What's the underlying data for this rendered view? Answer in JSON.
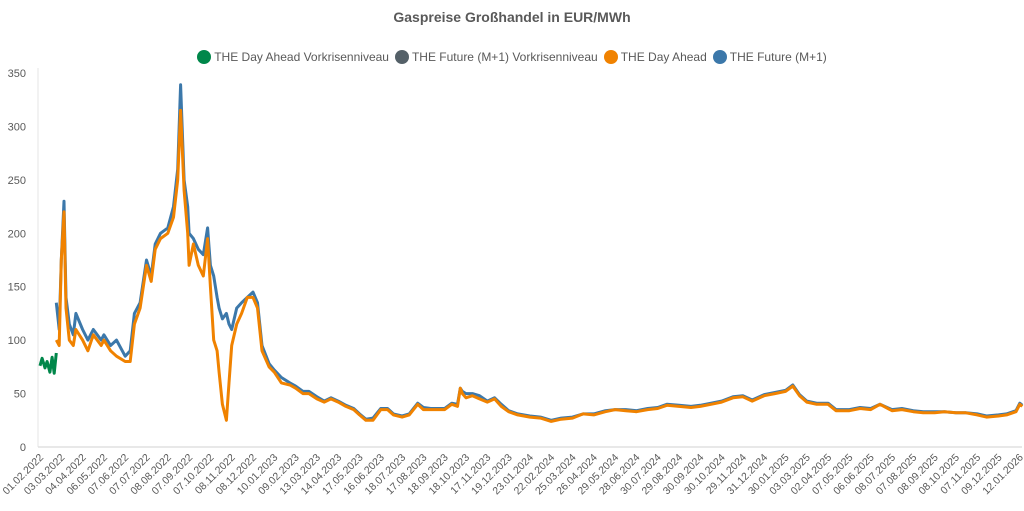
{
  "chart_data": {
    "type": "line",
    "title": "Gaspreise Großhandel in EUR/MWh",
    "xlabel": "",
    "ylabel": "",
    "ylim": [
      0,
      350
    ],
    "yticks": [
      0,
      50,
      100,
      150,
      200,
      250,
      300,
      350
    ],
    "grid": false,
    "legend_position": "top",
    "x_tick_labels": [
      "01.02.2022",
      "03.03.2022",
      "04.04.2022",
      "06.05.2022",
      "07.06.2022",
      "07.07.2022",
      "08.08.2022",
      "07.09.2022",
      "07.10.2022",
      "08.11.2022",
      "08.12.2022",
      "10.01.2023",
      "09.02.2023",
      "13.03.2023",
      "14.04.2023",
      "17.05.2023",
      "16.06.2023",
      "18.07.2023",
      "17.08.2023",
      "18.09.2023",
      "18.10.2023",
      "17.11.2023",
      "19.12.2023",
      "23.01.2024",
      "22.02.2024",
      "25.03.2024",
      "26.04.2024",
      "29.05.2024",
      "28.06.2024",
      "30.07.2024",
      "29.08.2024",
      "30.09.2024",
      "30.10.2024",
      "29.11.2024",
      "31.12.2024",
      "30.01.2025",
      "03.03.2025",
      "02.04.2025",
      "07.05.2025",
      "06.06.2025",
      "08.07.2025",
      "07.08.2025",
      "08.09.2025",
      "08.10.2025",
      "07.11.2025",
      "09.12.2025",
      "12.01.2026"
    ],
    "series": [
      {
        "name": "THE Day Ahead Vorkrisenniveau",
        "color": "#00874A",
        "points": [
          [
            "2022-02-01",
            76
          ],
          [
            "2022-02-04",
            83
          ],
          [
            "2022-02-08",
            74
          ],
          [
            "2022-02-11",
            80
          ],
          [
            "2022-02-15",
            70
          ],
          [
            "2022-02-18",
            84
          ],
          [
            "2022-02-21",
            69
          ],
          [
            "2022-02-24",
            88
          ]
        ]
      },
      {
        "name": "THE Future (M+1) Vorkrisenniveau",
        "color": "#546068",
        "points": []
      },
      {
        "name": "THE Day Ahead",
        "color": "#F08200",
        "key": "da"
      },
      {
        "name": "THE Future (M+1)",
        "color": "#3C78AA",
        "key": "fut"
      }
    ],
    "rows_date_dayahead_future": [
      [
        "2022-02-24",
        100,
        135
      ],
      [
        "2022-02-28",
        95,
        110
      ],
      [
        "2022-03-03",
        175,
        175
      ],
      [
        "2022-03-07",
        220,
        230
      ],
      [
        "2022-03-10",
        130,
        140
      ],
      [
        "2022-03-15",
        100,
        115
      ],
      [
        "2022-03-21",
        95,
        105
      ],
      [
        "2022-03-25",
        110,
        125
      ],
      [
        "2022-04-04",
        100,
        110
      ],
      [
        "2022-04-12",
        90,
        100
      ],
      [
        "2022-04-20",
        105,
        110
      ],
      [
        "2022-05-02",
        95,
        100
      ],
      [
        "2022-05-06",
        100,
        105
      ],
      [
        "2022-05-16",
        90,
        95
      ],
      [
        "2022-05-25",
        85,
        100
      ],
      [
        "2022-06-07",
        80,
        85
      ],
      [
        "2022-06-14",
        80,
        90
      ],
      [
        "2022-06-20",
        115,
        125
      ],
      [
        "2022-06-28",
        130,
        135
      ],
      [
        "2022-07-07",
        170,
        175
      ],
      [
        "2022-07-14",
        155,
        160
      ],
      [
        "2022-07-20",
        185,
        190
      ],
      [
        "2022-07-28",
        195,
        200
      ],
      [
        "2022-08-08",
        200,
        205
      ],
      [
        "2022-08-16",
        215,
        225
      ],
      [
        "2022-08-22",
        250,
        260
      ],
      [
        "2022-08-26",
        315,
        339
      ],
      [
        "2022-08-31",
        240,
        250
      ],
      [
        "2022-09-05",
        200,
        225
      ],
      [
        "2022-09-07",
        170,
        200
      ],
      [
        "2022-09-13",
        190,
        195
      ],
      [
        "2022-09-20",
        170,
        185
      ],
      [
        "2022-09-27",
        160,
        180
      ],
      [
        "2022-10-03",
        195,
        205
      ],
      [
        "2022-10-07",
        150,
        170
      ],
      [
        "2022-10-12",
        100,
        160
      ],
      [
        "2022-10-17",
        90,
        140
      ],
      [
        "2022-10-20",
        70,
        130
      ],
      [
        "2022-10-25",
        40,
        120
      ],
      [
        "2022-10-31",
        25,
        125
      ],
      [
        "2022-11-04",
        60,
        115
      ],
      [
        "2022-11-08",
        95,
        110
      ],
      [
        "2022-11-15",
        115,
        130
      ],
      [
        "2022-11-22",
        125,
        135
      ],
      [
        "2022-11-30",
        140,
        140
      ],
      [
        "2022-12-08",
        140,
        145
      ],
      [
        "2022-12-15",
        130,
        135
      ],
      [
        "2022-12-22",
        90,
        95
      ],
      [
        "2023-01-02",
        75,
        78
      ],
      [
        "2023-01-10",
        70,
        72
      ],
      [
        "2023-01-20",
        60,
        65
      ],
      [
        "2023-02-01",
        58,
        60
      ],
      [
        "2023-02-09",
        55,
        57
      ],
      [
        "2023-02-20",
        50,
        52
      ],
      [
        "2023-03-01",
        50,
        52
      ],
      [
        "2023-03-13",
        45,
        47
      ],
      [
        "2023-03-24",
        42,
        43
      ],
      [
        "2023-04-03",
        45,
        46
      ],
      [
        "2023-04-14",
        42,
        43
      ],
      [
        "2023-04-26",
        38,
        39
      ],
      [
        "2023-05-08",
        35,
        36
      ],
      [
        "2023-05-17",
        30,
        31
      ],
      [
        "2023-05-26",
        25,
        26
      ],
      [
        "2023-06-05",
        25,
        27
      ],
      [
        "2023-06-16",
        35,
        36
      ],
      [
        "2023-06-26",
        35,
        36
      ],
      [
        "2023-07-05",
        30,
        31
      ],
      [
        "2023-07-18",
        28,
        29
      ],
      [
        "2023-07-28",
        30,
        31
      ],
      [
        "2023-08-09",
        40,
        41
      ],
      [
        "2023-08-17",
        35,
        37
      ],
      [
        "2023-08-28",
        35,
        36
      ],
      [
        "2023-09-08",
        35,
        36
      ],
      [
        "2023-09-18",
        35,
        36
      ],
      [
        "2023-09-28",
        40,
        41
      ],
      [
        "2023-10-06",
        38,
        40
      ],
      [
        "2023-10-10",
        55,
        55
      ],
      [
        "2023-10-13",
        50,
        52
      ],
      [
        "2023-10-18",
        46,
        50
      ],
      [
        "2023-10-27",
        48,
        50
      ],
      [
        "2023-11-06",
        45,
        48
      ],
      [
        "2023-11-17",
        42,
        43
      ],
      [
        "2023-11-28",
        45,
        46
      ],
      [
        "2023-12-08",
        38,
        40
      ],
      [
        "2023-12-19",
        33,
        34
      ],
      [
        "2024-01-03",
        30,
        31
      ],
      [
        "2024-01-23",
        28,
        29
      ],
      [
        "2024-02-07",
        27,
        28
      ],
      [
        "2024-02-22",
        24,
        25
      ],
      [
        "2024-03-08",
        26,
        27
      ],
      [
        "2024-03-25",
        27,
        28
      ],
      [
        "2024-04-10",
        31,
        31
      ],
      [
        "2024-04-26",
        30,
        31
      ],
      [
        "2024-05-14",
        33,
        34
      ],
      [
        "2024-05-29",
        35,
        35
      ],
      [
        "2024-06-13",
        34,
        35
      ],
      [
        "2024-06-28",
        33,
        34
      ],
      [
        "2024-07-15",
        35,
        36
      ],
      [
        "2024-07-30",
        36,
        37
      ],
      [
        "2024-08-12",
        39,
        40
      ],
      [
        "2024-08-29",
        38,
        39
      ],
      [
        "2024-09-16",
        37,
        38
      ],
      [
        "2024-09-30",
        38,
        39
      ],
      [
        "2024-10-15",
        40,
        41
      ],
      [
        "2024-10-30",
        42,
        43
      ],
      [
        "2024-11-15",
        46,
        47
      ],
      [
        "2024-11-29",
        47,
        48
      ],
      [
        "2024-12-13",
        43,
        44
      ],
      [
        "2024-12-31",
        48,
        49
      ],
      [
        "2025-01-15",
        50,
        51
      ],
      [
        "2025-01-30",
        52,
        53
      ],
      [
        "2025-02-10",
        57,
        58
      ],
      [
        "2025-02-20",
        48,
        49
      ],
      [
        "2025-03-03",
        42,
        43
      ],
      [
        "2025-03-17",
        40,
        41
      ],
      [
        "2025-04-02",
        40,
        41
      ],
      [
        "2025-04-15",
        34,
        35
      ],
      [
        "2025-05-07",
        34,
        35
      ],
      [
        "2025-05-22",
        36,
        37
      ],
      [
        "2025-06-06",
        35,
        36
      ],
      [
        "2025-06-20",
        40,
        40
      ],
      [
        "2025-07-08",
        34,
        35
      ],
      [
        "2025-07-22",
        35,
        36
      ],
      [
        "2025-08-07",
        33,
        34
      ],
      [
        "2025-08-22",
        32,
        33
      ],
      [
        "2025-09-08",
        32,
        33
      ],
      [
        "2025-09-22",
        33,
        33
      ],
      [
        "2025-10-08",
        32,
        32
      ],
      [
        "2025-10-22",
        32,
        32
      ],
      [
        "2025-11-07",
        30,
        31
      ],
      [
        "2025-11-21",
        28,
        29
      ],
      [
        "2025-12-09",
        29,
        30
      ],
      [
        "2025-12-22",
        30,
        31
      ],
      [
        "2026-01-06",
        33,
        34
      ],
      [
        "2026-01-12",
        40,
        41
      ],
      [
        "2026-01-16",
        38,
        39
      ]
    ]
  }
}
